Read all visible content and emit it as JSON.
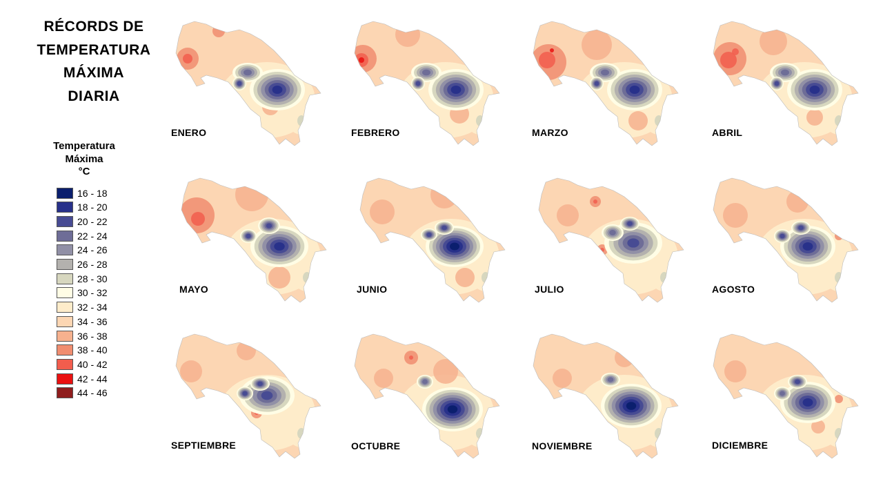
{
  "title_lines": [
    "RÉCORDS DE",
    "TEMPERATURA",
    "MÁXIMA",
    "DIARIA"
  ],
  "legend": {
    "title_lines": [
      "Temperatura",
      "Máxima",
      "°C"
    ],
    "items": [
      {
        "label": "16 - 18",
        "color": "#0b1f6e"
      },
      {
        "label": "18 - 20",
        "color": "#28318a"
      },
      {
        "label": "20 - 22",
        "color": "#474b93"
      },
      {
        "label": "22 - 24",
        "color": "#6e6d97"
      },
      {
        "label": "24 - 26",
        "color": "#9190a6"
      },
      {
        "label": "26 - 28",
        "color": "#b3b1ae"
      },
      {
        "label": "28 - 30",
        "color": "#d7d7bf"
      },
      {
        "label": "30 - 32",
        "color": "#fffde5"
      },
      {
        "label": "32 - 34",
        "color": "#feecca"
      },
      {
        "label": "34 - 36",
        "color": "#fcd6b3"
      },
      {
        "label": "36 - 38",
        "color": "#f6b18e"
      },
      {
        "label": "38 - 40",
        "color": "#f08d70"
      },
      {
        "label": "40 - 42",
        "color": "#f25d4d"
      },
      {
        "label": "42 - 44",
        "color": "#ea1111"
      },
      {
        "label": "44 - 46",
        "color": "#8f1d1d"
      }
    ]
  },
  "months": [
    {
      "name": "ENERO"
    },
    {
      "name": "FEBRERO"
    },
    {
      "name": "MARZO"
    },
    {
      "name": "ABRIL"
    },
    {
      "name": "MAYO"
    },
    {
      "name": "JUNIO"
    },
    {
      "name": "JULIO"
    },
    {
      "name": "AGOSTO"
    },
    {
      "name": "SEPTIEMBRE"
    },
    {
      "name": "OCTUBRE"
    },
    {
      "name": "NOVIEMBRE"
    },
    {
      "name": "DICIEMBRE"
    }
  ]
}
